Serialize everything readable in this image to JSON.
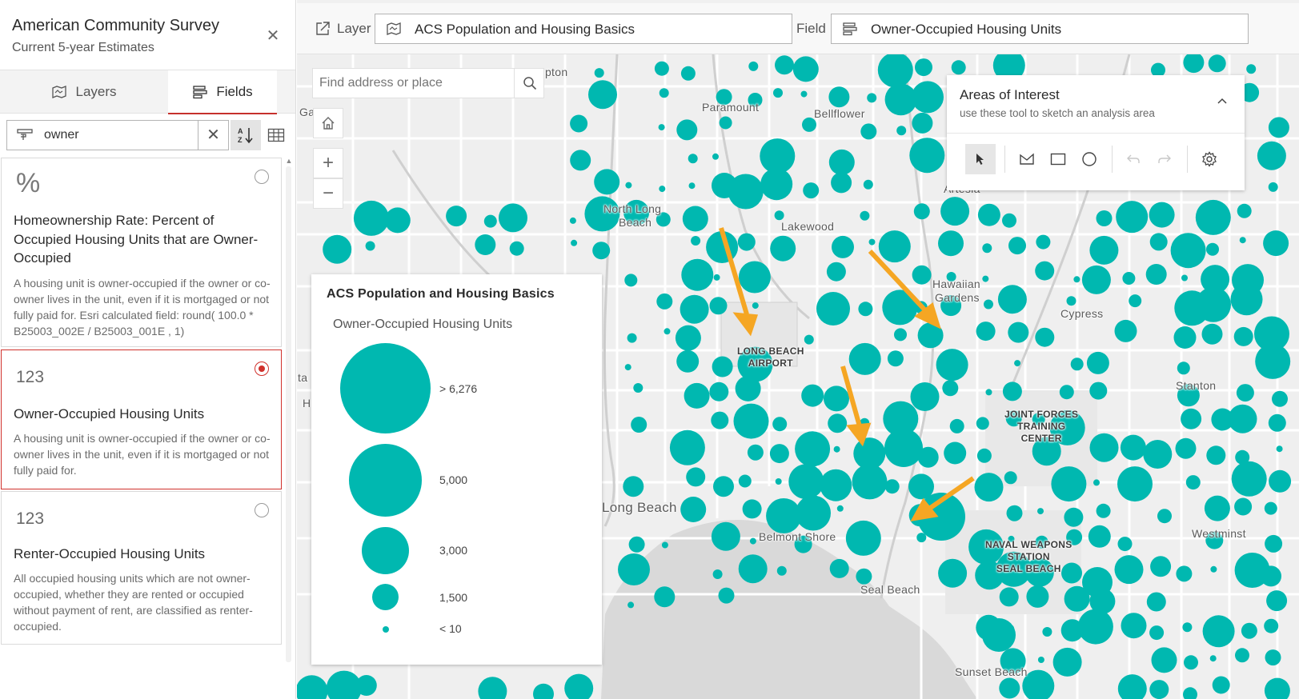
{
  "panel": {
    "title": "American Community Survey",
    "subtitle": "Current 5-year Estimates",
    "close_icon": "close-icon"
  },
  "tabs": [
    {
      "label": "Layers",
      "icon": "map-layers-icon"
    },
    {
      "label": "Fields",
      "icon": "fields-list-icon",
      "active": true
    }
  ],
  "filter": {
    "value": "owner",
    "icon": "filter-icon",
    "clear_icon": "close-icon",
    "sort_icon": "sort-az-icon",
    "table_icon": "table-icon"
  },
  "fields": [
    {
      "type_glyph": "%",
      "name": "Homeownership Rate: Percent of Occupied Housing Units that are Owner-Occupied",
      "description": "A housing unit is owner-occupied if the owner or co-owner lives in the unit, even if it is mortgaged or not fully paid for. Esri calculated field: round( 100.0 * B25003_002E / B25003_001E , 1)",
      "selected": false
    },
    {
      "type_glyph": "123",
      "name": "Owner-Occupied Housing Units",
      "description": "A housing unit is owner-occupied if the owner or co-owner lives in the unit, even if it is mortgaged or not fully paid for.",
      "selected": true
    },
    {
      "type_glyph": "123",
      "name": "Renter-Occupied Housing Units",
      "description": "All occupied housing units which are not owner-occupied, whether they are rented or occupied without payment of rent, are classified as renter-occupied.",
      "selected": false
    }
  ],
  "toolbar": {
    "layer_label": "Layer",
    "layer_value": "ACS Population and Housing Basics",
    "field_label": "Field",
    "field_value": "Owner-Occupied Housing Units"
  },
  "map": {
    "search_placeholder": "Find address or place",
    "zoom_in": "+",
    "zoom_out": "−",
    "places": {
      "compton": "mpton",
      "paramount": "Paramount",
      "bellflower": "Bellflower",
      "artesia": "Artesia",
      "north_long_beach_1": "North Long",
      "north_long_beach_2": "Beach",
      "lakewood": "Lakewood",
      "hawaiian_1": "Hawaiian",
      "hawaiian_2": "Gardens",
      "cypress": "Cypress",
      "airport_1": "LONG BEACH",
      "airport_2": "AIRPORT",
      "stanton": "Stanton",
      "jftc_1": "JOINT FORCES",
      "jftc_2": "TRAINING",
      "jftc_3": "CENTER",
      "long_beach": "Long Beach",
      "belmont_shore": "Belmont Shore",
      "westminster": "Westminst",
      "naval_1": "NAVAL WEAPONS",
      "naval_2": "STATION",
      "naval_3": "SEAL BEACH",
      "seal_beach": "Seal Beach",
      "sunset_beach": "Sunset Beach",
      "gardena_frag": "Ga",
      "h_frag": "H",
      "ta_frag": "ta"
    }
  },
  "legend": {
    "title": "ACS Population and Housing Basics",
    "subtitle": "Owner-Occupied Housing Units",
    "classes": [
      {
        "label": "> 6,276"
      },
      {
        "label": "5,000"
      },
      {
        "label": "3,000"
      },
      {
        "label": "1,500"
      },
      {
        "label": "< 10"
      }
    ],
    "color": "#00b8b0"
  },
  "aoi": {
    "title": "Areas of Interest",
    "subtitle": "use these tool to sketch an analysis area",
    "tools": [
      "select-pointer-icon",
      "polygon-icon",
      "rectangle-icon",
      "circle-icon",
      "undo-icon",
      "redo-icon",
      "settings-gear-icon"
    ]
  },
  "colors": {
    "accent": "#d0312c",
    "symbol": "#00b8b0",
    "arrow": "#f5a623"
  }
}
